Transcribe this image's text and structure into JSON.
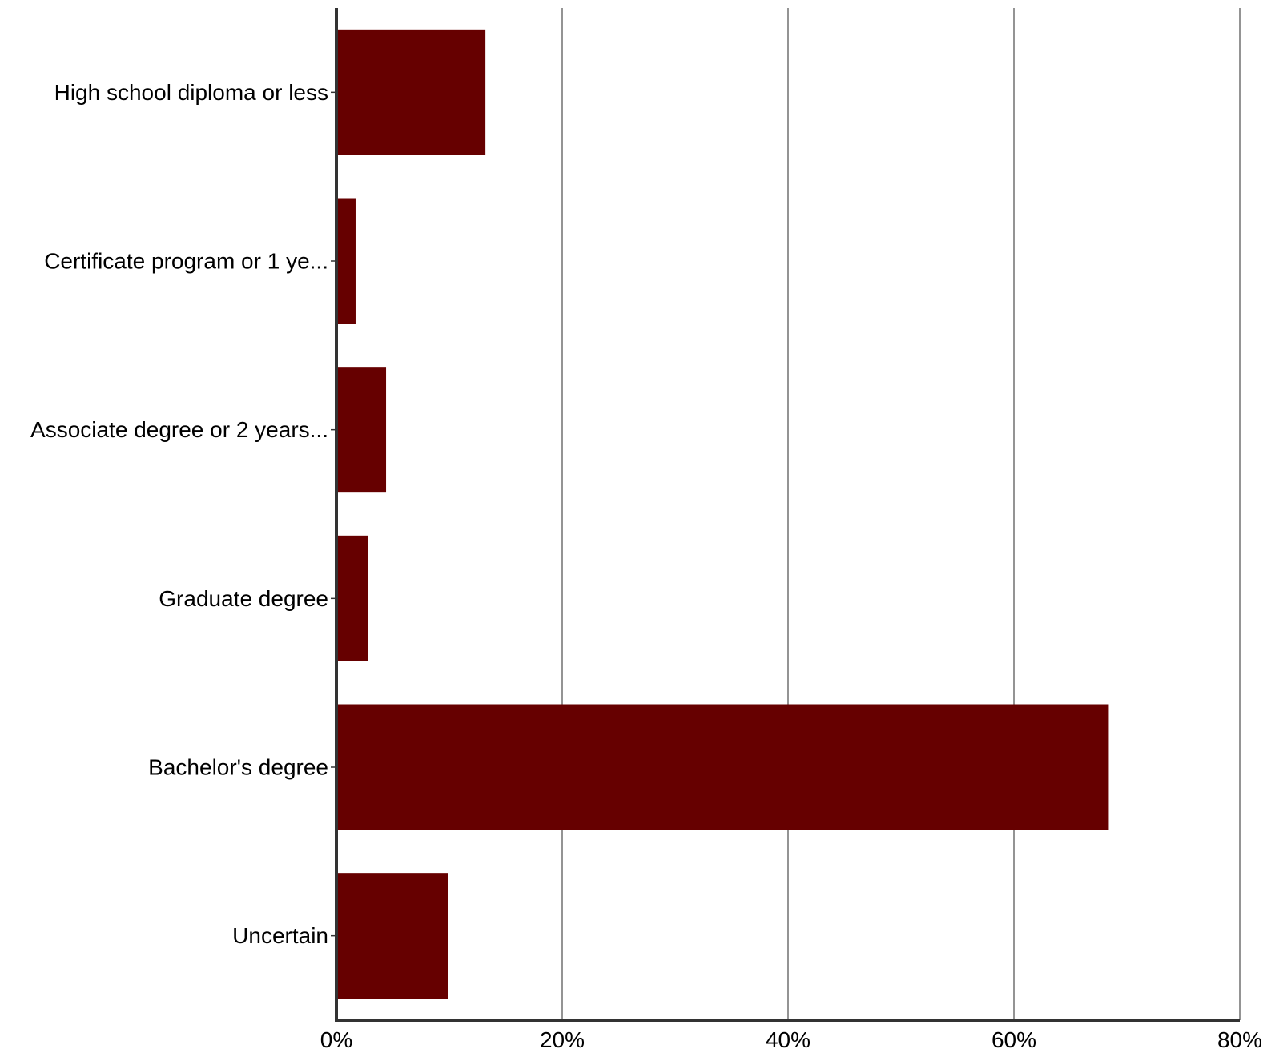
{
  "chart_data": {
    "type": "bar",
    "orientation": "horizontal",
    "categories": [
      "High school diploma or less",
      "Certificate program or 1 ye...",
      "Associate degree or 2 years...",
      "Graduate degree",
      "Bachelor's degree",
      "Uncertain"
    ],
    "values": [
      13.2,
      1.7,
      4.4,
      2.8,
      68.4,
      9.9
    ],
    "value_unit": "%",
    "xlim": [
      0,
      80
    ],
    "xticks": [
      0,
      20,
      40,
      60,
      80
    ],
    "xtick_labels": [
      "0%",
      "20%",
      "40%",
      "60%",
      "80%"
    ],
    "title": "",
    "xlabel": "",
    "ylabel": "",
    "grid": "vertical",
    "legend": "none",
    "bar_color": "#660000"
  }
}
